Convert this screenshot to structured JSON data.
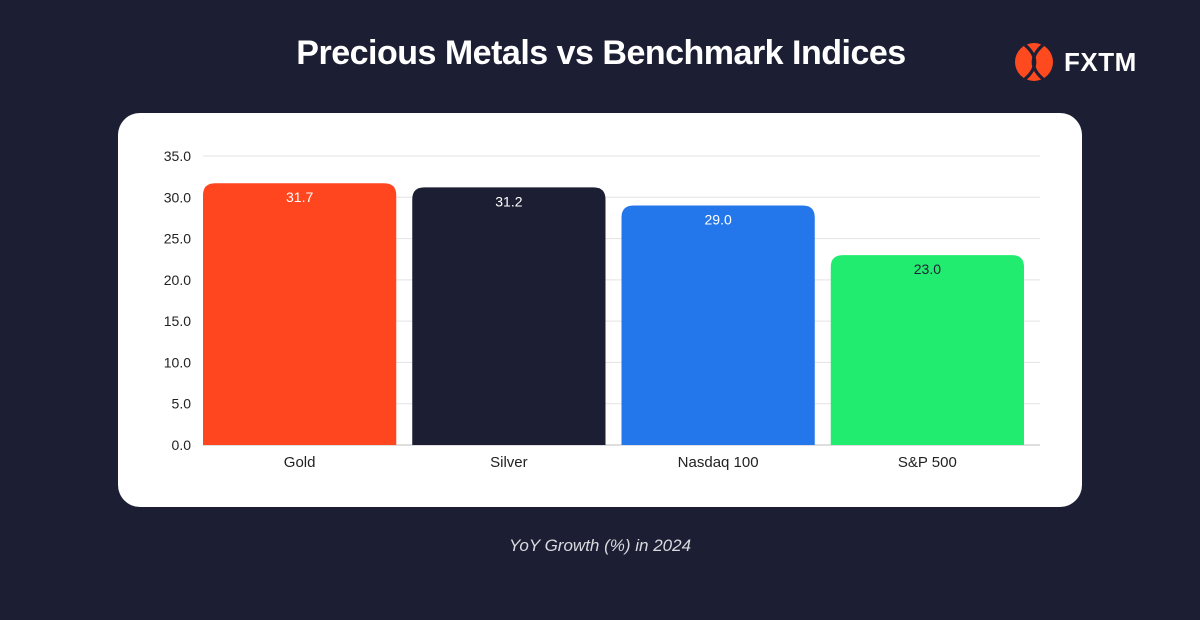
{
  "header": {
    "title": "Precious Metals vs Benchmark Indices",
    "brand": "FXTM",
    "brand_color": "#ff4a1f"
  },
  "footer": {
    "subtitle": "YoY Growth (%) in 2024"
  },
  "chart_data": {
    "type": "bar",
    "title": "Precious Metals vs Benchmark Indices",
    "xlabel": "YoY Growth (%) in 2024",
    "ylabel": "",
    "categories": [
      "Gold",
      "Silver",
      "Nasdaq 100",
      "S&P 500"
    ],
    "values": [
      31.7,
      31.2,
      29.0,
      23.0
    ],
    "value_labels": [
      "31.7",
      "31.2",
      "29.0",
      "23.0"
    ],
    "colors": [
      "#ff461f",
      "#1c1f33",
      "#2477ea",
      "#22ec70"
    ],
    "label_colors": [
      "#ffffff",
      "#ffffff",
      "#ffffff",
      "#1c1f33"
    ],
    "ylim": [
      0,
      35
    ],
    "yticks": [
      0,
      5,
      10,
      15,
      20,
      25,
      30,
      35
    ],
    "ytick_labels": [
      "0.0",
      "5.0",
      "10.0",
      "15.0",
      "20.0",
      "25.0",
      "30.0",
      "35.0"
    ],
    "grid": true,
    "legend": "none"
  }
}
